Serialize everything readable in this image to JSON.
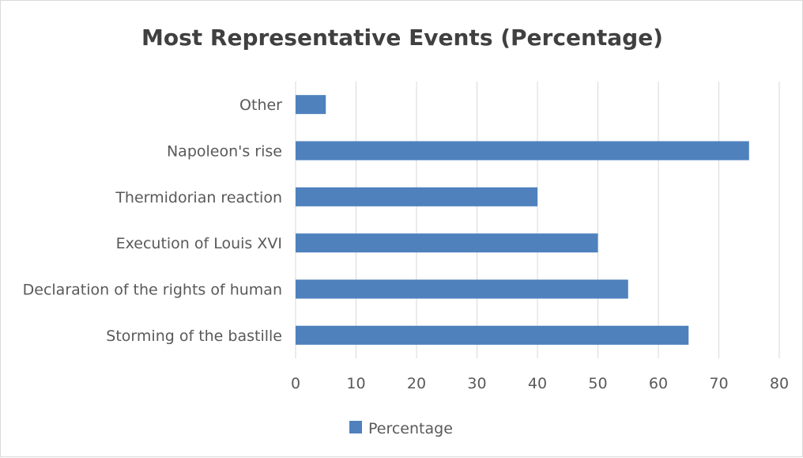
{
  "chart_data": {
    "type": "bar",
    "orientation": "horizontal",
    "title": "Most Representative Events (Percentage)",
    "categories": [
      "Storming of the bastille",
      "Declaration of the rights of human",
      "Execution of Louis XVI",
      "Thermidorian reaction",
      "Napoleon's rise",
      "Other"
    ],
    "series": [
      {
        "name": "Percentage",
        "values": [
          65,
          55,
          50,
          40,
          75,
          5
        ]
      }
    ],
    "xlim": [
      0,
      80
    ],
    "xticks": [
      "0",
      "10",
      "20",
      "30",
      "40",
      "50",
      "60",
      "70",
      "80"
    ],
    "grid": true,
    "legend": "bottom",
    "colors": {
      "bar": "#4f81bd",
      "grid": "#d9d9d9",
      "text": "#595959",
      "title": "#404040"
    }
  }
}
